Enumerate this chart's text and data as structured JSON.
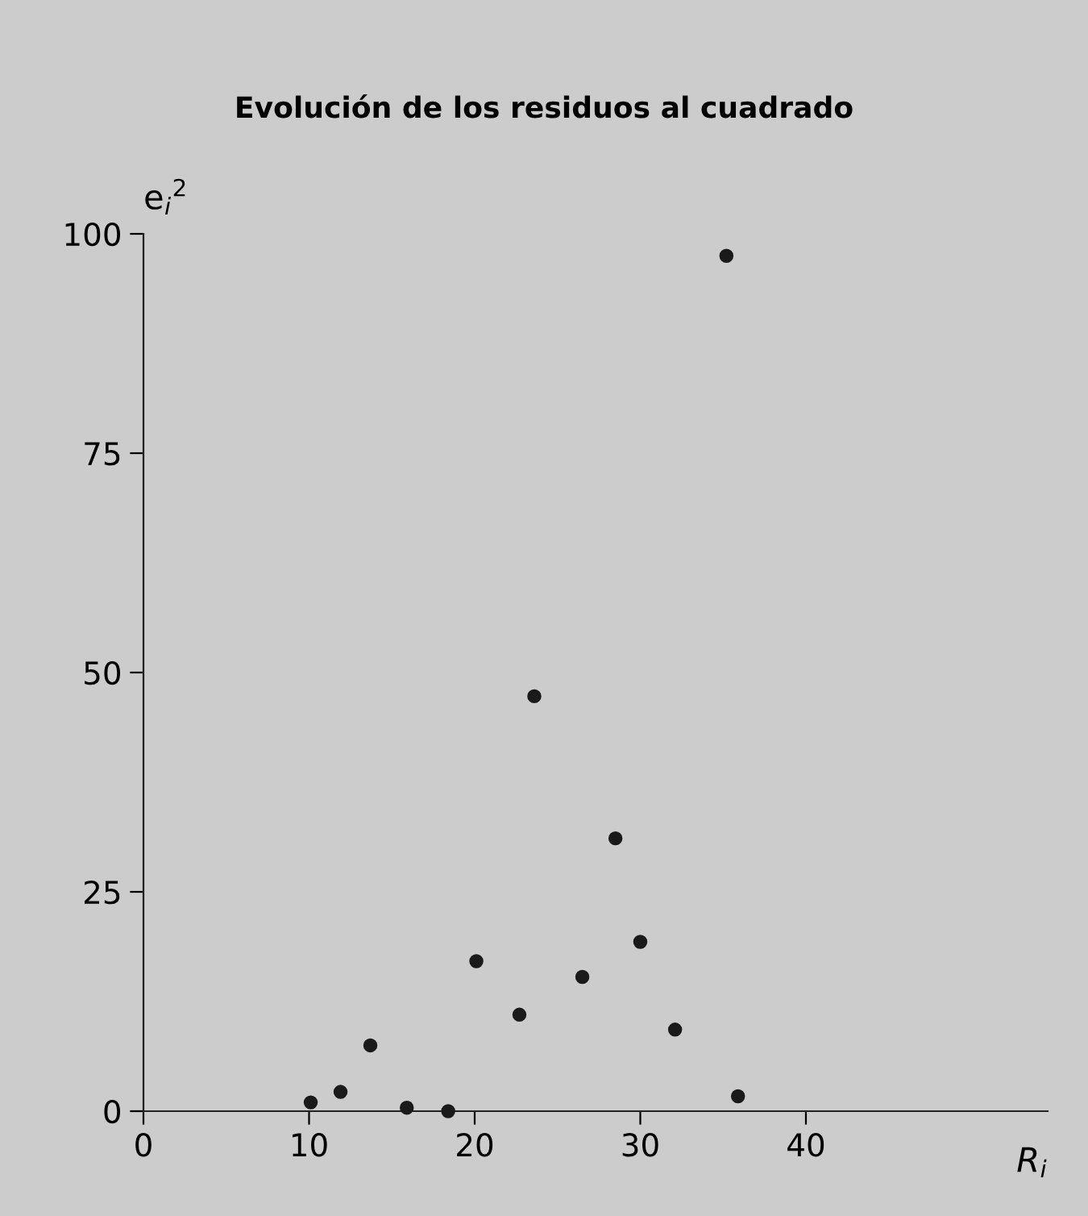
{
  "chart_data": {
    "type": "scatter",
    "title": "Evolución de los residuos al cuadrado",
    "xlabel": "R$_{i}$",
    "ylabel": "e$_{i}$$^{2}$",
    "x": [
      10.1,
      11.9,
      13.7,
      15.9,
      18.4,
      20.1,
      22.7,
      23.6,
      26.5,
      28.5,
      30.0,
      32.1,
      35.2,
      35.9
    ],
    "values": [
      1.0,
      2.2,
      7.5,
      0.4,
      0,
      17.1,
      11.0,
      47.3,
      15.3,
      31.1,
      19.3,
      9.3,
      97.5,
      1.7
    ],
    "color": "#1a1a1a",
    "marker": "circle",
    "xlim": [
      0,
      54.6
    ],
    "ylim": [
      0,
      100
    ],
    "xticks": [
      0,
      10,
      20,
      30,
      40
    ],
    "yticks": [
      0,
      25,
      50,
      75,
      100
    ],
    "grid": false,
    "legend": false
  }
}
